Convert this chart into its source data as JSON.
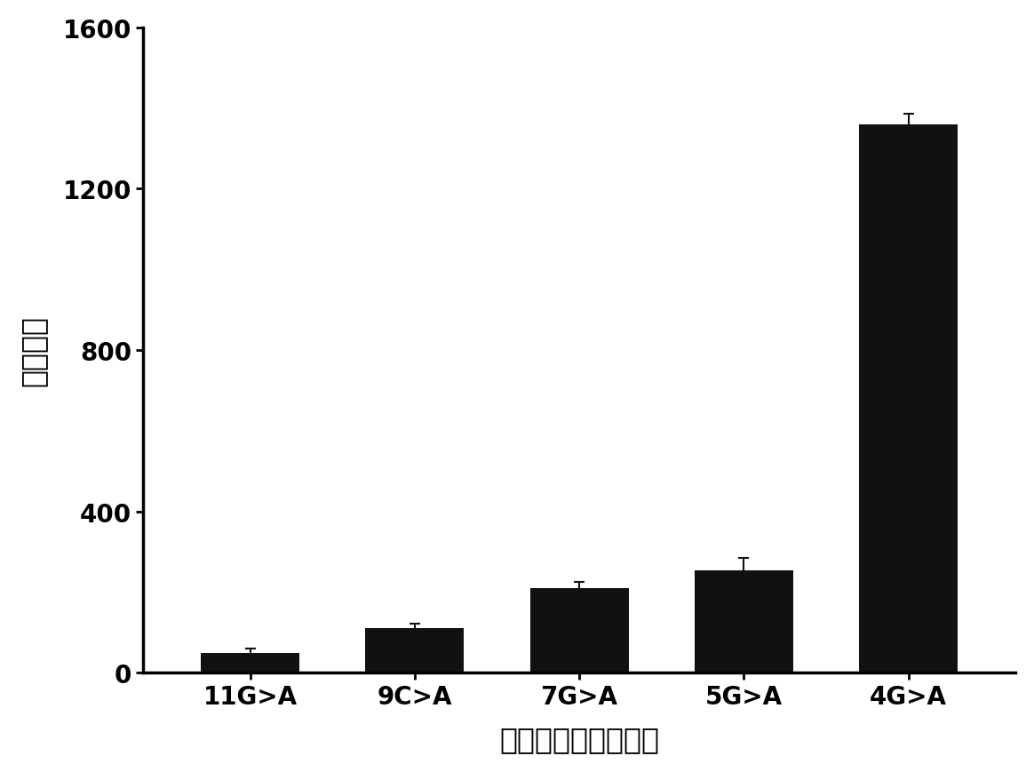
{
  "categories": [
    "11G>A",
    "9C>A",
    "7G>A",
    "5G>A",
    "4G>A"
  ],
  "values": [
    50,
    110,
    210,
    255,
    1360
  ],
  "errors": [
    10,
    12,
    15,
    30,
    25
  ],
  "bar_color": "#111111",
  "xlabel": "野生型基因突变位点",
  "ylabel": "区分因子",
  "ylim": [
    0,
    1600
  ],
  "yticks": [
    0,
    400,
    800,
    1200,
    1600
  ],
  "background_color": "#ffffff",
  "xlabel_fontsize": 24,
  "ylabel_fontsize": 24,
  "tick_fontsize": 20,
  "bar_width": 0.6
}
